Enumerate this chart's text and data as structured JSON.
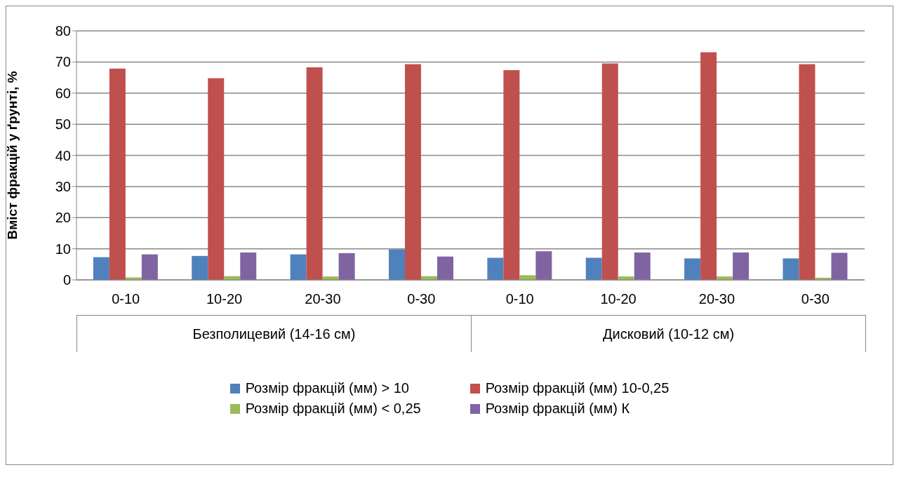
{
  "chart_data": {
    "type": "bar",
    "ylabel": "Вміст фракцій у ґрунті, %",
    "categories": [
      "0-10",
      "10-20",
      "20-30",
      "0-30",
      "0-10",
      "10-20",
      "20-30",
      "0-30"
    ],
    "series": [
      {
        "name": "Розмір фракцій (мм) > 10",
        "color": "#4f81bd",
        "values": [
          7.3,
          7.7,
          8.2,
          9.8,
          7.1,
          7.1,
          6.9,
          6.9
        ]
      },
      {
        "name": "Розмір фракцій (мм) 10-0,25",
        "color": "#c0504d",
        "values": [
          67.9,
          64.8,
          68.3,
          69.3,
          67.4,
          69.5,
          73.1,
          69.3
        ]
      },
      {
        "name": "Розмір фракцій (мм) < 0,25",
        "color": "#9bbb59",
        "values": [
          0.8,
          1.2,
          1.1,
          1.2,
          1.5,
          1.1,
          1.1,
          0.7
        ]
      },
      {
        "name": "Розмір фракцій (мм) К",
        "color": "#8064a2",
        "values": [
          8.2,
          8.8,
          8.6,
          7.5,
          9.2,
          8.8,
          8.8,
          8.7
        ]
      }
    ],
    "ylim": [
      0,
      80
    ],
    "yticks": [
      0,
      10,
      20,
      30,
      40,
      50,
      60,
      70,
      80
    ],
    "grid": "y",
    "legend": "bottom",
    "annotations": [
      "Безполицевий (14-16 см)",
      "Дисковий (10-12 см)"
    ]
  }
}
